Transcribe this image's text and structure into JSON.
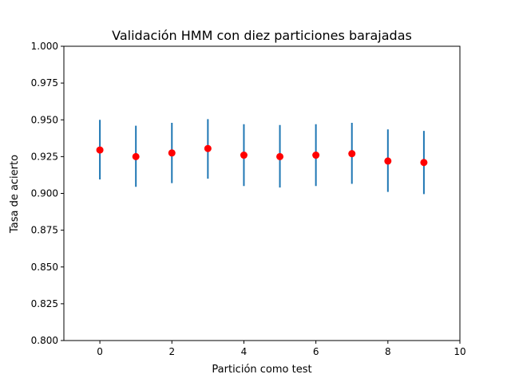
{
  "chart_data": {
    "type": "scatter",
    "title": "Validación HMM con diez particiones barajadas",
    "xlabel": "Partición como test",
    "ylabel": "Tasa de acierto",
    "xlim": [
      -1,
      10
    ],
    "ylim": [
      0.8,
      1.0
    ],
    "x_ticks": [
      0,
      2,
      4,
      6,
      8,
      10
    ],
    "y_ticks": [
      0.8,
      0.825,
      0.85,
      0.875,
      0.9,
      0.925,
      0.95,
      0.975,
      1.0
    ],
    "x_tick_labels": [
      "0",
      "2",
      "4",
      "6",
      "8",
      "10"
    ],
    "y_tick_labels": [
      "0.800",
      "0.825",
      "0.850",
      "0.875",
      "0.900",
      "0.925",
      "0.950",
      "0.975",
      "1.000"
    ],
    "grid": false,
    "series": [
      {
        "x": [
          0,
          1,
          2,
          3,
          4,
          5,
          6,
          7,
          8,
          9
        ],
        "y": [
          0.9295,
          0.925,
          0.9275,
          0.9305,
          0.926,
          0.925,
          0.926,
          0.927,
          0.922,
          0.921
        ],
        "yerr_low": [
          0.9095,
          0.9045,
          0.907,
          0.91,
          0.905,
          0.904,
          0.905,
          0.9065,
          0.901,
          0.8995
        ],
        "yerr_high": [
          0.95,
          0.946,
          0.948,
          0.9505,
          0.947,
          0.9465,
          0.947,
          0.948,
          0.9435,
          0.9425
        ]
      }
    ],
    "colors": {
      "marker": "#ff0000",
      "errorbar": "#1f77b4",
      "axes": "#000000"
    }
  }
}
